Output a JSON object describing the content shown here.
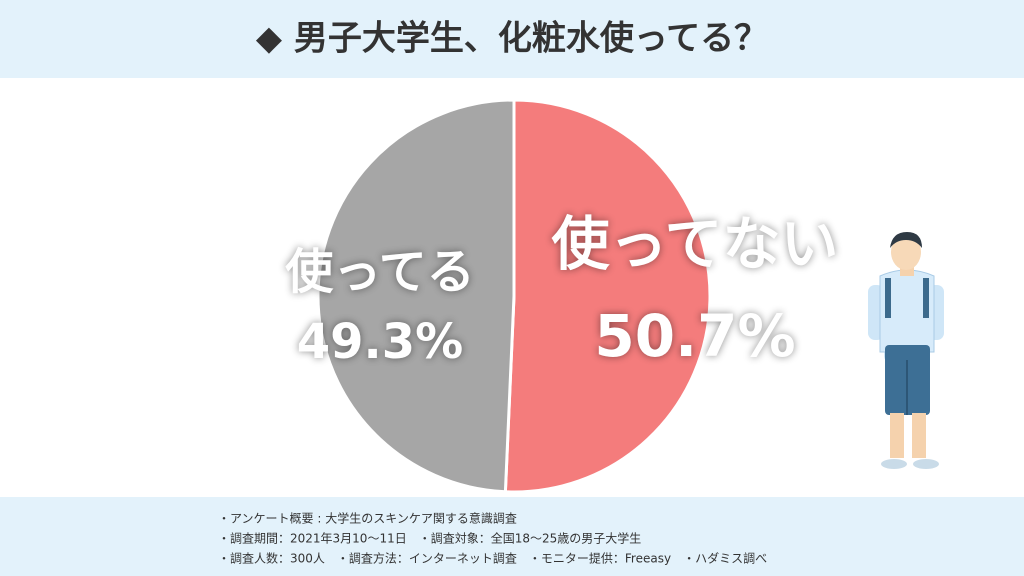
{
  "chart_data": {
    "type": "pie",
    "title": "◆ 男子大学生、化粧水使ってる？",
    "categories": [
      "使ってない",
      "使ってる"
    ],
    "values": [
      50.7,
      49.3
    ],
    "value_labels": [
      "50.7%",
      "49.3%"
    ],
    "colors": [
      "#f47c7c",
      "#a6a6a6"
    ],
    "notes": [
      "・アンケート概要 : 大学生のスキンケア関する意識調査",
      "・調査期間：2021年3月10〜11日　・調査対象：全国18〜25歳の男子大学生",
      "・調査人数：300人　・調査方法：インターネット調査　・モニター提供：Freeasy　・ハダミス調べ"
    ]
  }
}
